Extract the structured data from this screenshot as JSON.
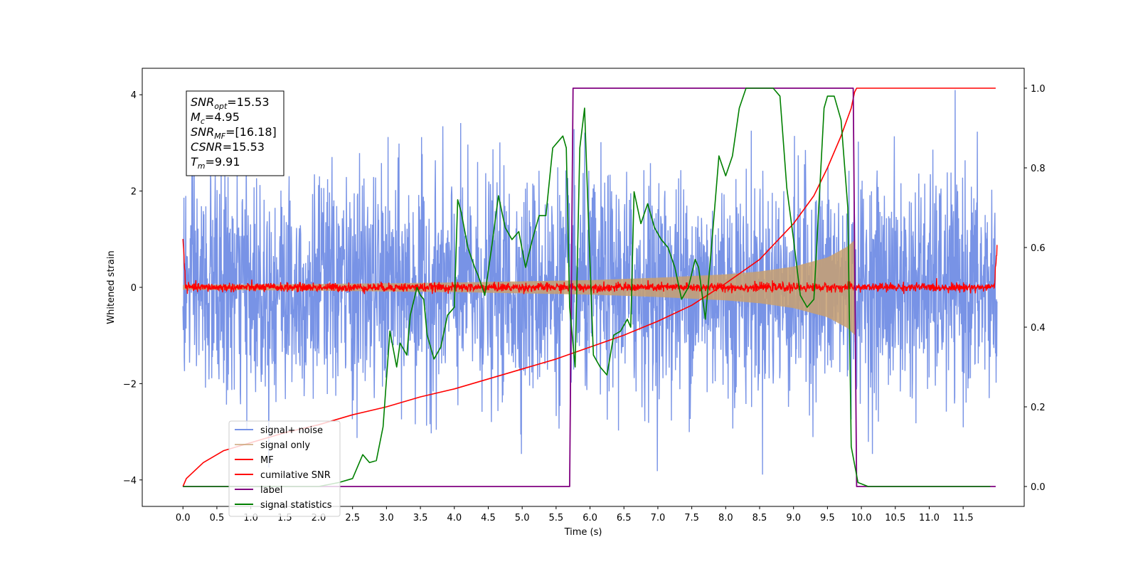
{
  "chart_data": {
    "type": "line",
    "xlabel": "Time (s)",
    "ylabel": "Whitened strain",
    "y2label": "",
    "xlim": [
      -0.6,
      12.4
    ],
    "ylim": [
      -4.55,
      4.55
    ],
    "y2lim": [
      -0.05,
      1.05
    ],
    "xticks": [
      "0.0",
      "0.5",
      "1.0",
      "1.5",
      "2.0",
      "2.5",
      "3.0",
      "3.5",
      "4.0",
      "4.5",
      "5.0",
      "5.5",
      "6.0",
      "6.5",
      "7.0",
      "7.5",
      "8.0",
      "8.5",
      "9.0",
      "9.5",
      "10.0",
      "10.5",
      "11.0",
      "11.5"
    ],
    "yticks": [
      "−4",
      "−2",
      "0",
      "2",
      "4"
    ],
    "yticks_values": [
      -4,
      -2,
      0,
      2,
      4
    ],
    "y2ticks": [
      "0.0",
      "0.2",
      "0.4",
      "0.6",
      "0.8",
      "1.0"
    ],
    "y2ticks_values": [
      0,
      0.2,
      0.4,
      0.6,
      0.8,
      1.0
    ],
    "grid": false,
    "legend_position": "lower-left",
    "annotation": {
      "lines": [
        {
          "main": "SNR",
          "sub": "opt",
          "value": "=15.53"
        },
        {
          "main": "M",
          "sub": "c",
          "value": "=4.95"
        },
        {
          "main": "SNR",
          "sub": "MF",
          "value": "=[16.18]"
        },
        {
          "main": "CSNR",
          "sub": "",
          "value": "=15.53"
        },
        {
          "main": "T",
          "sub": "m",
          "value": "=9.91"
        }
      ]
    },
    "series": [
      {
        "name": "signal+ noise",
        "color": "#7893e6",
        "axis": "left",
        "kind": "noise",
        "description": "noisy whitened strain, amplitude roughly ±2.5 to ±4",
        "x_range": [
          0.0,
          12.0
        ]
      },
      {
        "name": "signal only",
        "color": "#c8a070",
        "axis": "left",
        "kind": "chirp",
        "envelope_x": [
          0.0,
          2.0,
          4.0,
          6.0,
          7.0,
          8.0,
          8.5,
          9.0,
          9.5,
          9.8,
          9.91
        ],
        "envelope_y": [
          0.05,
          0.07,
          0.1,
          0.15,
          0.2,
          0.27,
          0.33,
          0.43,
          0.62,
          0.85,
          1.0
        ]
      },
      {
        "name": "MF",
        "color": "#ff0000",
        "axis": "left",
        "kind": "mf",
        "description": "matched filter output near zero",
        "edges": {
          "start": 1.0,
          "end": 0.9
        }
      },
      {
        "name": "cumilative SNR",
        "color": "#ff0000",
        "axis": "right",
        "x": [
          0.0,
          0.05,
          0.3,
          0.6,
          1.0,
          1.5,
          2.0,
          2.5,
          3.0,
          3.5,
          4.0,
          4.5,
          5.0,
          5.5,
          6.0,
          6.5,
          7.0,
          7.5,
          8.0,
          8.5,
          9.0,
          9.3,
          9.5,
          9.7,
          9.85,
          9.9,
          9.93,
          10.5,
          11.0,
          11.5,
          11.98
        ],
        "y": [
          0.0,
          0.02,
          0.06,
          0.09,
          0.11,
          0.135,
          0.155,
          0.18,
          0.2,
          0.225,
          0.245,
          0.27,
          0.295,
          0.32,
          0.35,
          0.38,
          0.415,
          0.455,
          0.51,
          0.57,
          0.66,
          0.73,
          0.8,
          0.88,
          0.95,
          0.99,
          1.0,
          1.0,
          1.0,
          1.0,
          1.0
        ]
      },
      {
        "name": "label",
        "color": "#800080",
        "axis": "right",
        "x": [
          0.0,
          5.7,
          5.75,
          9.88,
          9.93,
          11.98
        ],
        "y": [
          0.0,
          0.0,
          1.0,
          1.0,
          0.0,
          0.0
        ]
      },
      {
        "name": "signal statistics",
        "color": "#008000",
        "axis": "right",
        "x": [
          0.0,
          1.0,
          2.0,
          2.3,
          2.5,
          2.6,
          2.65,
          2.75,
          2.85,
          2.95,
          3.05,
          3.15,
          3.2,
          3.3,
          3.35,
          3.45,
          3.5,
          3.55,
          3.6,
          3.7,
          3.8,
          3.9,
          4.0,
          4.05,
          4.1,
          4.2,
          4.3,
          4.35,
          4.45,
          4.55,
          4.65,
          4.75,
          4.85,
          4.95,
          5.05,
          5.15,
          5.25,
          5.35,
          5.45,
          5.55,
          5.6,
          5.65,
          5.7,
          5.78,
          5.85,
          5.92,
          5.97,
          6.05,
          6.15,
          6.25,
          6.35,
          6.45,
          6.55,
          6.6,
          6.65,
          6.75,
          6.85,
          6.95,
          7.05,
          7.15,
          7.25,
          7.35,
          7.45,
          7.55,
          7.6,
          7.7,
          7.8,
          7.9,
          8.0,
          8.1,
          8.2,
          8.3,
          8.5,
          8.7,
          8.8,
          8.9,
          9.0,
          9.1,
          9.2,
          9.3,
          9.45,
          9.5,
          9.6,
          9.7,
          9.8,
          9.85,
          9.95,
          10.1,
          11.0,
          11.9
        ],
        "y": [
          0.0,
          0.0,
          0.0,
          0.01,
          0.02,
          0.06,
          0.08,
          0.06,
          0.065,
          0.15,
          0.39,
          0.3,
          0.36,
          0.33,
          0.43,
          0.5,
          0.48,
          0.47,
          0.38,
          0.32,
          0.35,
          0.43,
          0.45,
          0.72,
          0.69,
          0.6,
          0.55,
          0.53,
          0.48,
          0.6,
          0.73,
          0.65,
          0.62,
          0.64,
          0.55,
          0.62,
          0.68,
          0.68,
          0.85,
          0.87,
          0.88,
          0.85,
          0.45,
          0.3,
          0.85,
          0.95,
          0.7,
          0.33,
          0.3,
          0.28,
          0.38,
          0.39,
          0.42,
          0.4,
          0.74,
          0.66,
          0.71,
          0.65,
          0.62,
          0.6,
          0.55,
          0.47,
          0.5,
          0.57,
          0.55,
          0.42,
          0.62,
          0.83,
          0.78,
          0.83,
          0.95,
          1.0,
          1.0,
          1.0,
          0.98,
          0.75,
          0.62,
          0.48,
          0.45,
          0.47,
          0.95,
          0.98,
          0.98,
          0.92,
          0.7,
          0.1,
          0.01,
          0.0,
          0.0,
          0.0
        ]
      }
    ]
  }
}
